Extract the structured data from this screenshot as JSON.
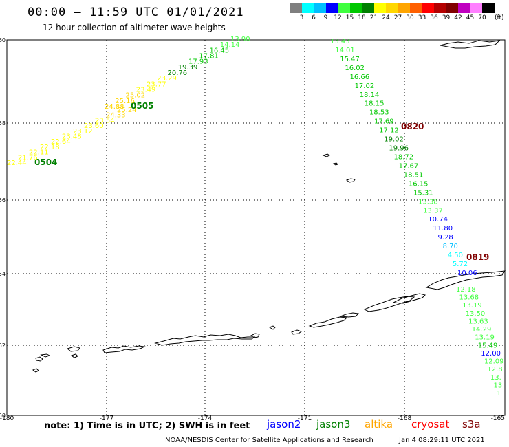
{
  "header": {
    "title": "00:00 – 11:59 UTC 01/01/2021",
    "subtitle": "12 hour collection of altimeter wave heights"
  },
  "colorbar": {
    "colors": [
      "#7f7f7f",
      "#00ffff",
      "#00bfff",
      "#0000ff",
      "#3fff3f",
      "#00c800",
      "#008000",
      "#ffff00",
      "#ffd700",
      "#ffa500",
      "#ff6000",
      "#ff0000",
      "#b40000",
      "#800000",
      "#c000c0",
      "#ff80ff",
      "#000000"
    ],
    "labels": [
      "3",
      "6",
      "9",
      "12",
      "15",
      "18",
      "21",
      "24",
      "27",
      "30",
      "33",
      "36",
      "39",
      "42",
      "45",
      "70"
    ],
    "unit": "(ft)"
  },
  "axes": {
    "lat_labels": [
      "60",
      "58",
      "56",
      "54",
      "52",
      "50"
    ],
    "lon_labels": [
      "-180",
      "-177",
      "-174",
      "-171",
      "-168",
      "-165"
    ]
  },
  "tracks": [
    {
      "id": "0504",
      "label_color": "#008000",
      "points": [
        {
          "v": "22.44",
          "c": "#ffff00"
        },
        {
          "v": "21.76",
          "c": "#ffff00"
        },
        {
          "v": "22.11",
          "c": "#ffff00"
        },
        {
          "v": "22.18",
          "c": "#ffff00"
        },
        {
          "v": "22.64",
          "c": "#ffff00"
        },
        {
          "v": "23.48",
          "c": "#ffff00"
        },
        {
          "v": "23.12",
          "c": "#ffff00"
        },
        {
          "v": "23.60",
          "c": "#ffff00"
        },
        {
          "v": "23.54",
          "c": "#ffff00"
        },
        {
          "v": "24.33",
          "c": "#ffd700"
        },
        {
          "v": "25.24",
          "c": "#ffd700"
        }
      ]
    },
    {
      "id": "0505",
      "label_color": "#008000",
      "points": [
        {
          "v": "24.88",
          "c": "#ffd700"
        },
        {
          "v": "25.16",
          "c": "#ffd700"
        },
        {
          "v": "25.02",
          "c": "#ffd700"
        },
        {
          "v": "23.49",
          "c": "#ffff00"
        },
        {
          "v": "23.77",
          "c": "#ffff00"
        },
        {
          "v": "23.29",
          "c": "#ffff00"
        },
        {
          "v": "20.76",
          "c": "#008000"
        },
        {
          "v": "19.39",
          "c": "#008000"
        },
        {
          "v": "17.93",
          "c": "#00c800"
        },
        {
          "v": "17.81",
          "c": "#00c800"
        },
        {
          "v": "16.45",
          "c": "#00c800"
        },
        {
          "v": "14.14",
          "c": "#3fff3f"
        },
        {
          "v": "13.90",
          "c": "#3fff3f"
        }
      ]
    },
    {
      "id": "0820",
      "label_color": "#800000",
      "points": [
        {
          "v": "13.43",
          "c": "#3fff3f"
        },
        {
          "v": "14.01",
          "c": "#3fff3f"
        },
        {
          "v": "15.47",
          "c": "#00c800"
        },
        {
          "v": "16.02",
          "c": "#00c800"
        },
        {
          "v": "16.66",
          "c": "#00c800"
        },
        {
          "v": "17.02",
          "c": "#00c800"
        },
        {
          "v": "18.14",
          "c": "#00c800"
        },
        {
          "v": "18.15",
          "c": "#00c800"
        },
        {
          "v": "18.53",
          "c": "#00c800"
        },
        {
          "v": "17.69",
          "c": "#00c800"
        },
        {
          "v": "17.12",
          "c": "#00c800"
        },
        {
          "v": "19.02",
          "c": "#008000"
        },
        {
          "v": "19.96",
          "c": "#008000"
        },
        {
          "v": "18.72",
          "c": "#00c800"
        },
        {
          "v": "17.67",
          "c": "#00c800"
        },
        {
          "v": "18.51",
          "c": "#00c800"
        },
        {
          "v": "16.15",
          "c": "#00c800"
        },
        {
          "v": "15.31",
          "c": "#00c800"
        },
        {
          "v": "13.38",
          "c": "#3fff3f"
        },
        {
          "v": "13.37",
          "c": "#3fff3f"
        },
        {
          "v": "10.74",
          "c": "#0000ff"
        },
        {
          "v": "11.80",
          "c": "#0000ff"
        },
        {
          "v": "9.28",
          "c": "#0000ff"
        },
        {
          "v": "8.70",
          "c": "#00bfff"
        },
        {
          "v": "4.50",
          "c": "#00ffff"
        },
        {
          "v": "5.72",
          "c": "#00ffff"
        },
        {
          "v": "10.06",
          "c": "#0000ff"
        }
      ]
    },
    {
      "id": "0819",
      "label_color": "#800000",
      "points": [
        {
          "v": "12.18",
          "c": "#3fff3f"
        },
        {
          "v": "13.68",
          "c": "#3fff3f"
        },
        {
          "v": "13.19",
          "c": "#3fff3f"
        },
        {
          "v": "13.50",
          "c": "#3fff3f"
        },
        {
          "v": "13.63",
          "c": "#3fff3f"
        },
        {
          "v": "14.29",
          "c": "#3fff3f"
        },
        {
          "v": "13.19",
          "c": "#3fff3f"
        },
        {
          "v": "15.49",
          "c": "#00c800"
        },
        {
          "v": "12.00",
          "c": "#0000ff"
        },
        {
          "v": "12.09",
          "c": "#3fff3f"
        },
        {
          "v": "12.8",
          "c": "#3fff3f"
        },
        {
          "v": "13.",
          "c": "#3fff3f"
        },
        {
          "v": "13",
          "c": "#3fff3f"
        },
        {
          "v": "1",
          "c": "#3fff3f"
        }
      ]
    }
  ],
  "footer": {
    "note": "note: 1) Time is in UTC; 2) SWH is in feet",
    "satellites": [
      {
        "name": "jason2",
        "color": "#0000ff"
      },
      {
        "name": "jason3",
        "color": "#008000"
      },
      {
        "name": "altika",
        "color": "#ffa500"
      },
      {
        "name": "cryosat",
        "color": "#ff0000"
      },
      {
        "name": "s3a",
        "color": "#800000"
      }
    ],
    "credit": "NOAA/NESDIS Center for Satellite Applications and Research",
    "timestamp": "Jan  4 08:29:11 UTC 2021"
  }
}
